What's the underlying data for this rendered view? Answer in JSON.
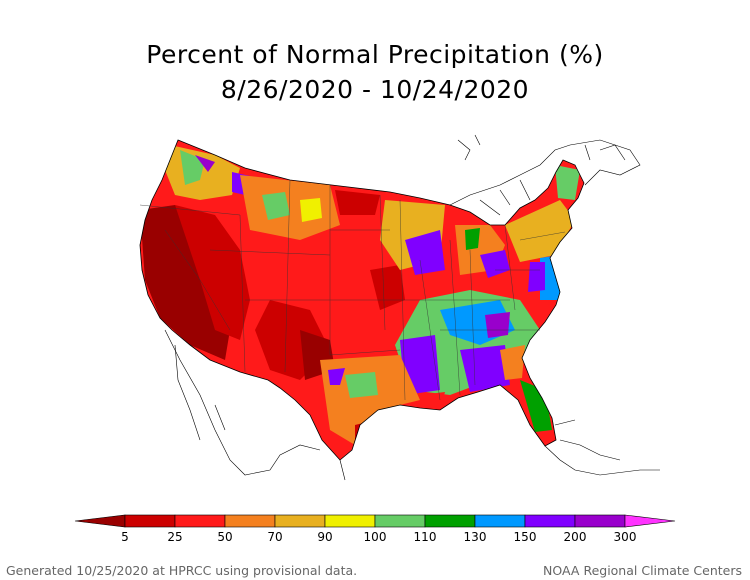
{
  "title": {
    "line1": "Percent of Normal Precipitation (%)",
    "line2": "8/26/2020 - 10/24/2020"
  },
  "legend": {
    "ticks": [
      "5",
      "25",
      "50",
      "70",
      "90",
      "100",
      "110",
      "130",
      "150",
      "200",
      "300"
    ],
    "colors": [
      "#990000",
      "#cc0000",
      "#ff1a1a",
      "#f4801f",
      "#e8b020",
      "#f0f000",
      "#66cc66",
      "#00a000",
      "#0099ff",
      "#8000ff",
      "#9900cc",
      "#ff33ff"
    ]
  },
  "footer": {
    "left": "Generated 10/25/2020 at HPRCC using provisional data.",
    "right": "NOAA Regional Climate Centers"
  }
}
